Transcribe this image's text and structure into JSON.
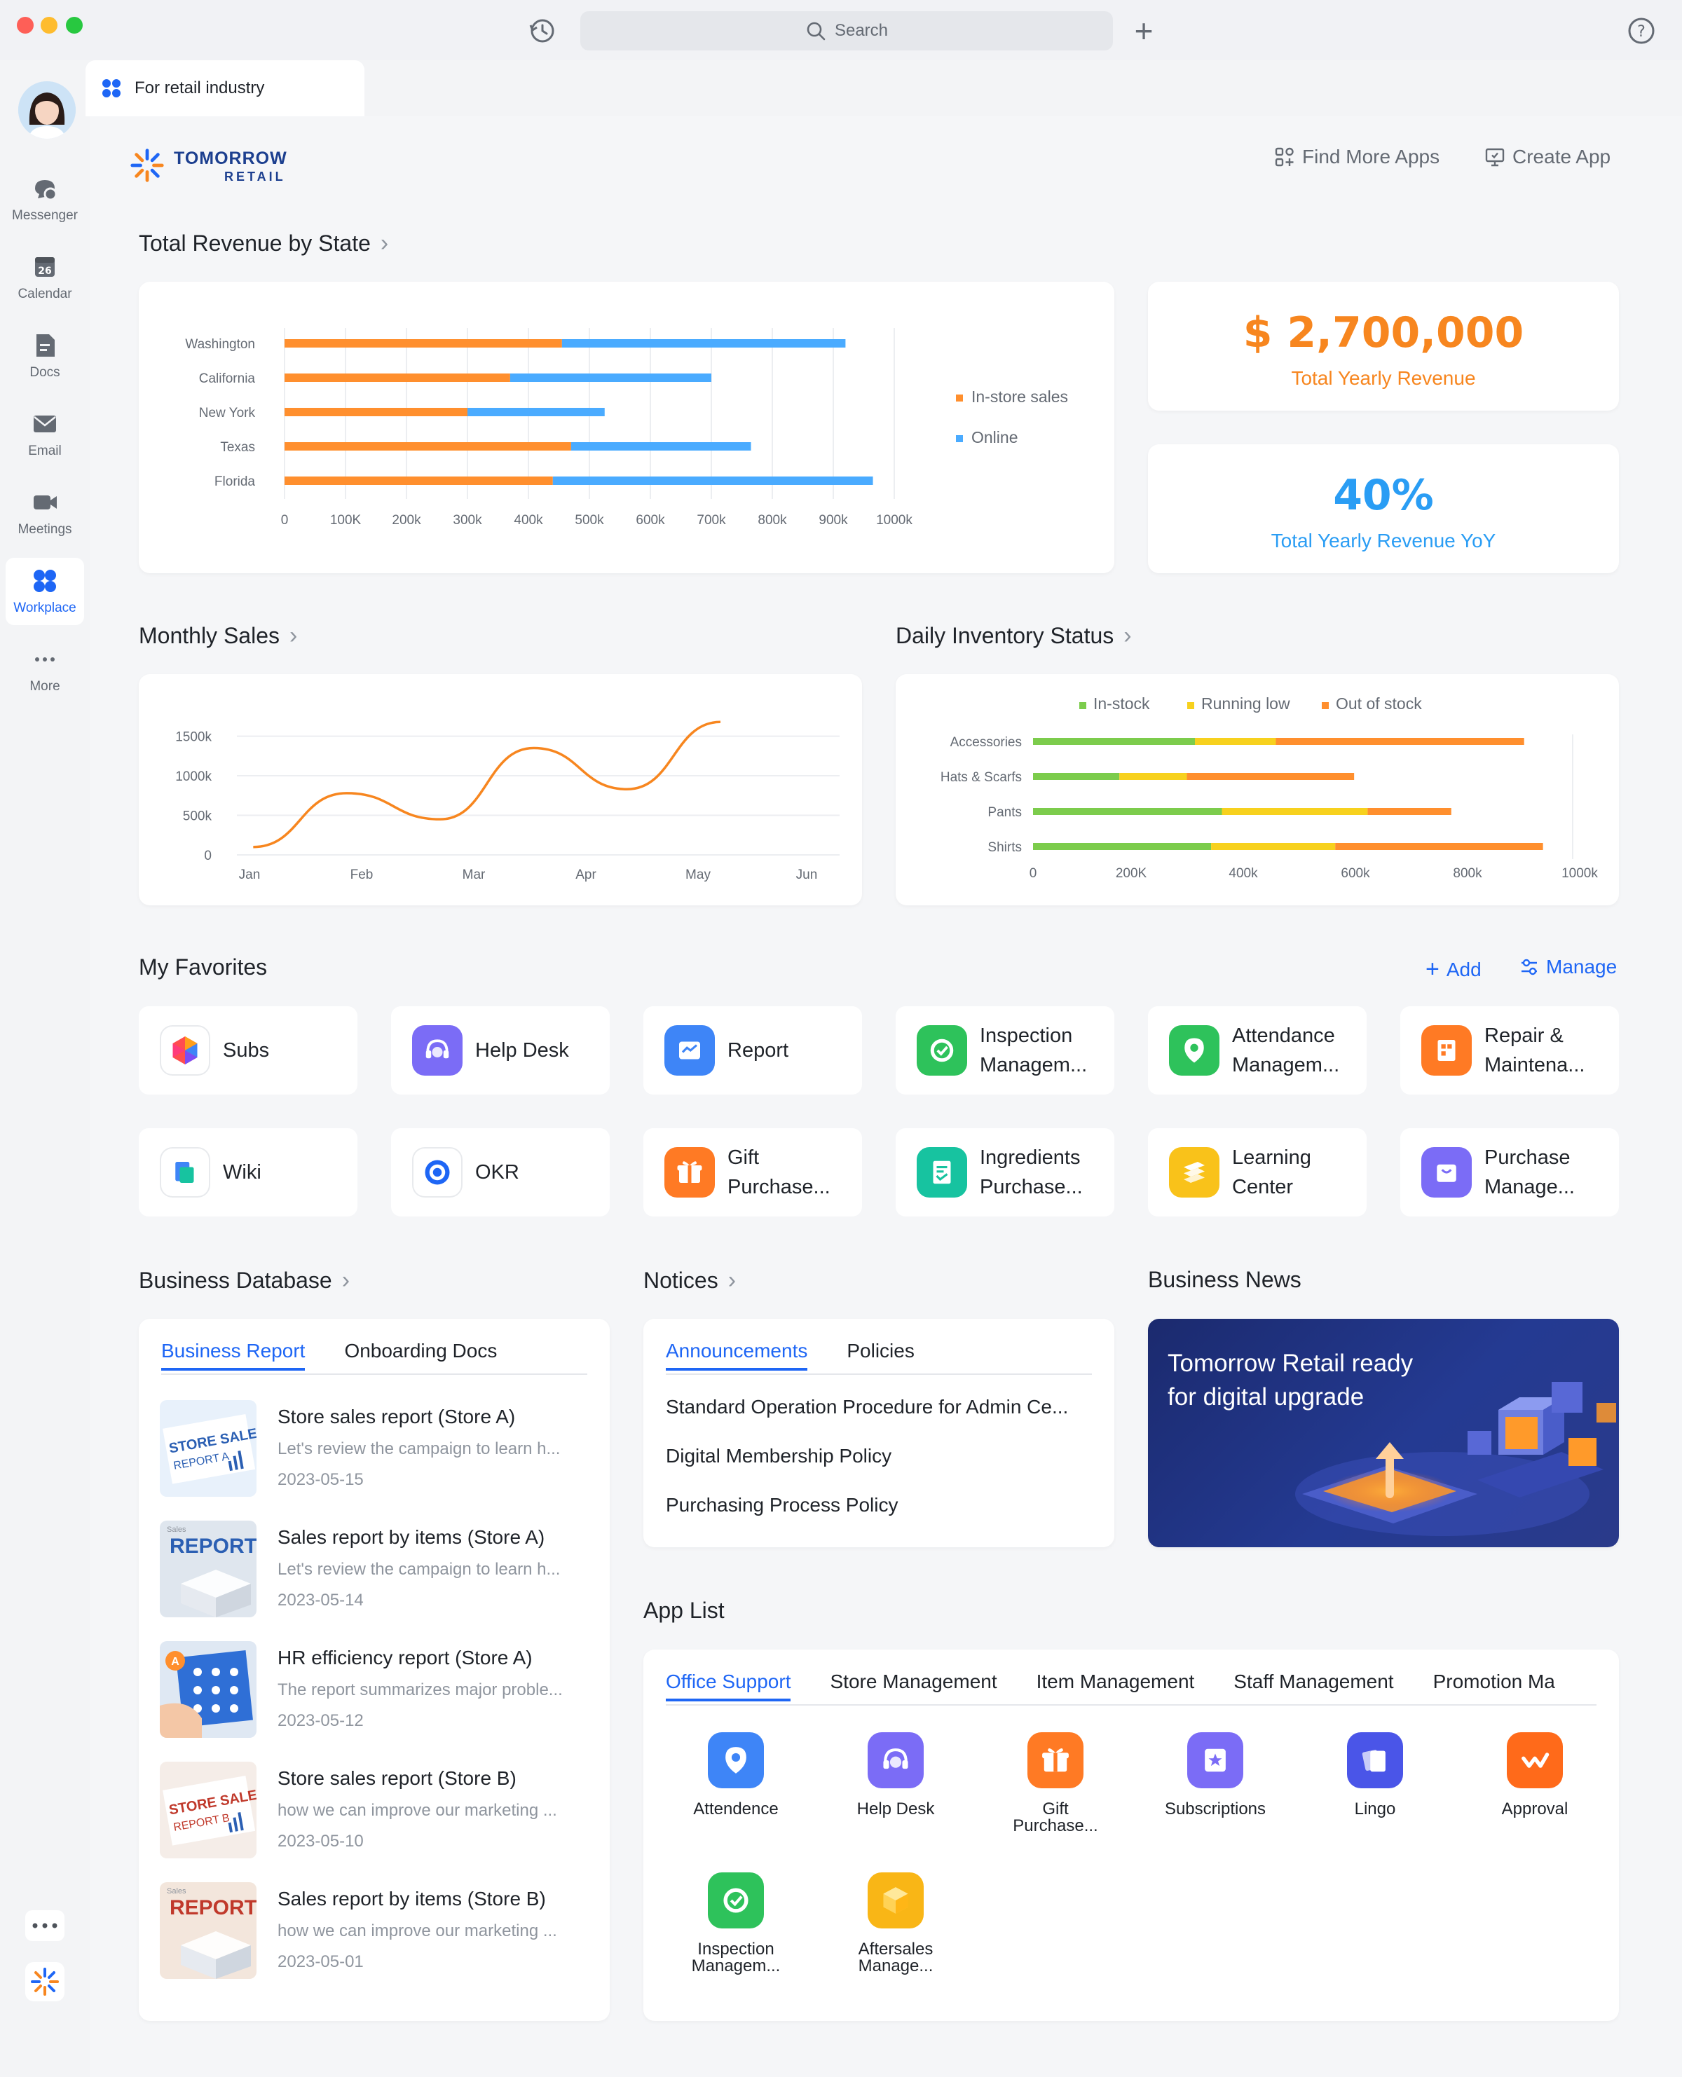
{
  "window": {
    "search_placeholder": "Search",
    "tab_label": "For retail industry"
  },
  "sidebar": {
    "items": [
      {
        "label": "Messenger",
        "icon": "messenger-icon"
      },
      {
        "label": "Calendar",
        "icon": "calendar-icon",
        "day": "26"
      },
      {
        "label": "Docs",
        "icon": "docs-icon"
      },
      {
        "label": "Email",
        "icon": "email-icon"
      },
      {
        "label": "Meetings",
        "icon": "meetings-icon"
      },
      {
        "label": "Workplace",
        "icon": "workplace-icon",
        "active": true
      },
      {
        "label": "More",
        "icon": "more-icon"
      }
    ]
  },
  "brand": {
    "name_top": "TOMORROW",
    "name_bottom": "RETAIL"
  },
  "header_actions": {
    "find_more": "Find More Apps",
    "create": "Create App"
  },
  "revenue_section": {
    "title": "Total Revenue by State",
    "chart_data": {
      "type": "bar",
      "orientation": "horizontal",
      "stacked": true,
      "categories": [
        "Washington",
        "California",
        "New York",
        "Texas",
        "Florida"
      ],
      "series": [
        {
          "name": "In-store sales",
          "color": "#ff8f2e",
          "values": [
            455,
            370,
            300,
            470,
            440
          ]
        },
        {
          "name": "Online",
          "color": "#4aabff",
          "values": [
            465,
            330,
            225,
            295,
            525
          ]
        }
      ],
      "x_ticks": [
        "0",
        "100K",
        "200k",
        "300k",
        "400k",
        "500k",
        "600k",
        "700k",
        "800k",
        "900k",
        "1000k"
      ],
      "xlim": [
        0,
        1000
      ],
      "legend": "right"
    }
  },
  "kpis": {
    "revenue_value": "$ 2,700,000",
    "revenue_label": "Total Yearly Revenue",
    "revenue_color": "#f7861f",
    "yoy_value": "40%",
    "yoy_label": "Total Yearly Revenue YoY",
    "yoy_color": "#2a9df4"
  },
  "monthly_sales": {
    "title": "Monthly Sales",
    "chart_data": {
      "type": "line",
      "x": [
        "Jan",
        "Feb",
        "Mar",
        "Apr",
        "May",
        "Jun"
      ],
      "values": [
        100,
        780,
        450,
        1350,
        830,
        1680
      ],
      "y_ticks": [
        "0",
        "500k",
        "1000k",
        "1500k"
      ],
      "ylim": [
        0,
        1700
      ],
      "color": "#f7861f",
      "smooth": true
    }
  },
  "inventory": {
    "title": "Daily Inventory Status",
    "chart_data": {
      "type": "bar",
      "orientation": "horizontal",
      "stacked": true,
      "categories": [
        "Accessories",
        "Hats & Scarfs",
        "Pants",
        "Shirts"
      ],
      "series": [
        {
          "name": "In-stock",
          "color": "#7ccc4c",
          "values": [
            300,
            160,
            350,
            330
          ]
        },
        {
          "name": "Running low",
          "color": "#f7d11e",
          "values": [
            150,
            125,
            270,
            230
          ]
        },
        {
          "name": "Out of stock",
          "color": "#ff8f2e",
          "values": [
            460,
            310,
            155,
            385
          ]
        }
      ],
      "x_ticks": [
        "0",
        "200K",
        "400k",
        "600k",
        "800k",
        "1000k"
      ],
      "xlim": [
        0,
        1000
      ],
      "legend": "top"
    }
  },
  "favorites": {
    "title": "My Favorites",
    "add": "Add",
    "manage": "Manage",
    "items": [
      {
        "label": "Subs",
        "icon": "subs-icon",
        "bg": "#ffffff"
      },
      {
        "label": "Help Desk",
        "icon": "help-desk-icon",
        "bg": "#7b6cf6"
      },
      {
        "label": "Report",
        "icon": "report-icon",
        "bg": "#3e85f7"
      },
      {
        "label": "Inspection\nManagem...",
        "icon": "inspection-icon",
        "bg": "#2ec25b"
      },
      {
        "label": "Attendance\nManagem...",
        "icon": "attendance-icon",
        "bg": "#2ec25b"
      },
      {
        "label": "Repair &\nMaintena...",
        "icon": "repair-icon",
        "bg": "#ff7a24"
      },
      {
        "label": "Wiki",
        "icon": "wiki-icon",
        "bg": "#ffffff"
      },
      {
        "label": "OKR",
        "icon": "okr-icon",
        "bg": "#ffffff"
      },
      {
        "label": "Gift\nPurchase...",
        "icon": "gift-icon",
        "bg": "#ff7a24"
      },
      {
        "label": "Ingredients\nPurchase...",
        "icon": "ingredients-icon",
        "bg": "#17c3a0"
      },
      {
        "label": "Learning\nCenter",
        "icon": "learning-icon",
        "bg": "#f9c21a"
      },
      {
        "label": "Purchase\nManage...",
        "icon": "purchase-icon",
        "bg": "#7b6cf6"
      }
    ]
  },
  "business_db": {
    "title": "Business Database",
    "tabs": [
      "Business Report",
      "Onboarding Docs"
    ],
    "items": [
      {
        "title": "Store sales report (Store A)",
        "desc": "Let's review the campaign to learn h...",
        "date": "2023-05-15",
        "thumb": "STORE SALES",
        "thumb_sub": "REPORT A"
      },
      {
        "title": "Sales report by items (Store A)",
        "desc": "Let's review the campaign to learn h...",
        "date": "2023-05-14",
        "thumb": "REPORT",
        "thumb_sub": "Sales"
      },
      {
        "title": "HR efficiency report (Store A)",
        "desc": "The report summarizes major proble...",
        "date": "2023-05-12",
        "thumb": "A",
        "thumb_sub": ""
      },
      {
        "title": "Store sales report (Store B)",
        "desc": "how we can improve our marketing ...",
        "date": "2023-05-10",
        "thumb": "STORE SALES",
        "thumb_sub": "REPORT B"
      },
      {
        "title": "Sales report by items (Store B)",
        "desc": "how we can improve our marketing ...",
        "date": "2023-05-01",
        "thumb": "REPORT",
        "thumb_sub": "Sales"
      }
    ]
  },
  "notices": {
    "title": "Notices",
    "tabs": [
      "Announcements",
      "Policies"
    ],
    "items": [
      "Standard Operation Procedure for Admin Ce...",
      "Digital Membership Policy",
      "Purchasing Process Policy"
    ]
  },
  "news": {
    "title": "Business News",
    "headline_1": "Tomorrow Retail ready",
    "headline_2": "for digital upgrade"
  },
  "app_list": {
    "title": "App List",
    "tabs": [
      "Office Support",
      "Store Management",
      "Item Management",
      "Staff Management",
      "Promotion Ma"
    ],
    "apps": [
      {
        "label": "Attendence",
        "icon": "attendence-icon",
        "bg": "#3e85f7"
      },
      {
        "label": "Help Desk",
        "icon": "help-desk-icon",
        "bg": "#7b6cf6"
      },
      {
        "label": "Gift\nPurchase...",
        "icon": "gift-icon",
        "bg": "#ff7a24"
      },
      {
        "label": "Subscriptions",
        "icon": "subscriptions-icon",
        "bg": "#7b6cf6"
      },
      {
        "label": "Lingo",
        "icon": "lingo-icon",
        "bg": "#4a55e8"
      },
      {
        "label": "Approval",
        "icon": "approval-icon",
        "bg": "#ff6a1a"
      },
      {
        "label": "Inspection\nManagem...",
        "icon": "inspection-icon",
        "bg": "#2ec25b"
      },
      {
        "label": "Aftersales\nManage...",
        "icon": "aftersales-icon",
        "bg": "#f9b616"
      }
    ]
  }
}
